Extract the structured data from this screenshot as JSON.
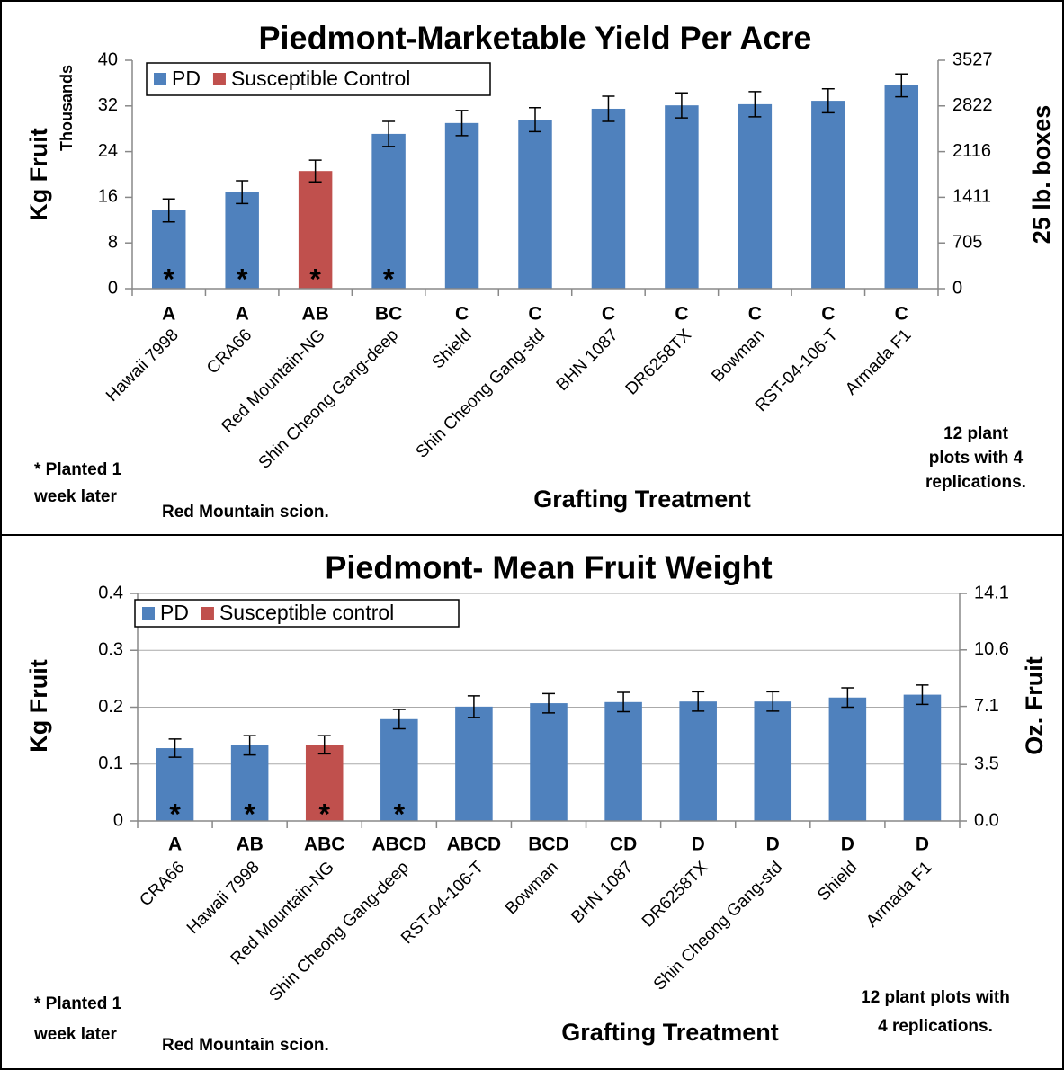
{
  "chart_data": [
    {
      "type": "bar",
      "title": "Piedmont-Marketable Yield Per Acre",
      "ylabel": "Kg Fruit",
      "yunit": "Thousands",
      "y2label": "25 lb. boxes",
      "xlabel": "Grafting Treatment",
      "categories": [
        "Hawaii 7998",
        "CRA66",
        "Red Mountain-NG",
        "Shin Cheong Gang-deep",
        "Shield",
        "Shin Cheong Gang-std",
        "BHN 1087",
        "DR6258TX",
        "Bowman",
        "RST-04-106-T",
        "Armada F1"
      ],
      "series": [
        {
          "name": "PD",
          "color": "#4f81bd",
          "values": [
            13.7,
            16.9,
            null,
            27.1,
            29.0,
            29.6,
            31.5,
            32.1,
            32.3,
            32.9,
            35.6
          ],
          "errors": [
            2.0,
            2.0,
            null,
            2.2,
            2.2,
            2.1,
            2.2,
            2.2,
            2.2,
            2.1,
            2.0
          ]
        },
        {
          "name": "Susceptible Control",
          "color": "#c0504d",
          "values": [
            null,
            null,
            20.6,
            null,
            null,
            null,
            null,
            null,
            null,
            null,
            null
          ],
          "errors": [
            null,
            null,
            1.9,
            null,
            null,
            null,
            null,
            null,
            null,
            null,
            null
          ]
        }
      ],
      "groups": [
        "A",
        "A",
        "AB",
        "BC",
        "C",
        "C",
        "C",
        "C",
        "C",
        "C",
        "C"
      ],
      "markers": [
        "*",
        "*",
        "*",
        "*",
        null,
        null,
        null,
        null,
        null,
        null,
        null
      ],
      "ylim": [
        0,
        40
      ],
      "yticks": [
        0,
        8,
        16,
        24,
        32,
        40
      ],
      "y2lim": [
        0,
        3527
      ],
      "y2ticks": [
        0,
        705,
        1411,
        2116,
        2822,
        3527
      ],
      "grid": false,
      "annotations": [
        [
          "* Planted 1",
          "week later"
        ],
        [
          "Red Mountain scion."
        ],
        [
          "12 plant",
          "plots with 4",
          "replications."
        ]
      ]
    },
    {
      "type": "bar",
      "title": "Piedmont- Mean Fruit Weight",
      "ylabel": "Kg Fruit",
      "y2label": "Oz. Fruit",
      "xlabel": "Grafting Treatment",
      "categories": [
        "CRA66",
        "Hawaii 7998",
        "Red Mountain-NG",
        "Shin Cheong Gang-deep",
        "RST-04-106-T",
        "Bowman",
        "BHN 1087",
        "DR6258TX",
        "Shin Cheong Gang-std",
        "Shield",
        "Armada F1"
      ],
      "series": [
        {
          "name": "PD",
          "color": "#4f81bd",
          "values": [
            0.128,
            0.133,
            null,
            0.179,
            0.201,
            0.207,
            0.209,
            0.21,
            0.21,
            0.217,
            0.222
          ],
          "errors": [
            0.016,
            0.017,
            null,
            0.017,
            0.019,
            0.017,
            0.017,
            0.017,
            0.017,
            0.017,
            0.017
          ]
        },
        {
          "name": "Susceptible control",
          "color": "#c0504d",
          "values": [
            null,
            null,
            0.134,
            null,
            null,
            null,
            null,
            null,
            null,
            null,
            null
          ],
          "errors": [
            null,
            null,
            0.016,
            null,
            null,
            null,
            null,
            null,
            null,
            null,
            null
          ]
        }
      ],
      "groups": [
        "A",
        "AB",
        "ABC",
        "ABCD",
        "ABCD",
        "BCD",
        "CD",
        "D",
        "D",
        "D",
        "D"
      ],
      "markers": [
        "*",
        "*",
        "*",
        "*",
        null,
        null,
        null,
        null,
        null,
        null,
        null
      ],
      "ylim": [
        0,
        0.4
      ],
      "yticks": [
        0,
        0.1,
        0.2,
        0.3,
        0.4
      ],
      "y2lim": [
        0,
        14.1
      ],
      "y2ticks": [
        {
          "value": 0,
          "label": "0.0"
        },
        3.5,
        7.1,
        10.6,
        14.1
      ],
      "grid": true,
      "annotations": [
        [
          "* Planted 1",
          "week later"
        ],
        [
          "Red Mountain scion."
        ],
        [
          "12 plant plots with",
          "4 replications."
        ]
      ]
    }
  ]
}
